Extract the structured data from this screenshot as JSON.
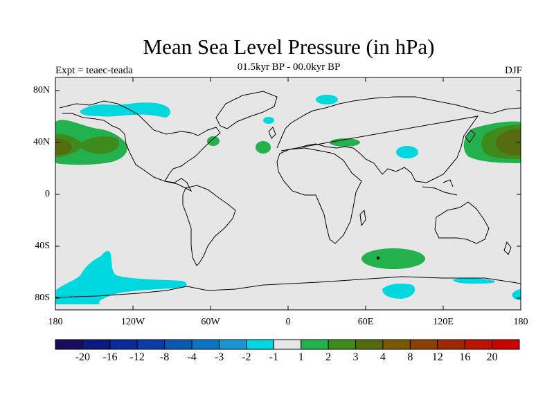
{
  "title": "Mean Sea Level Pressure (in hPa)",
  "subtitle": "01.5kyr BP - 00.0kyr BP",
  "left_label": "Expt = teaec-teada",
  "right_label": "DJF",
  "lat_labels": [
    "80N",
    "40N",
    "0",
    "40S",
    "80S"
  ],
  "lon_labels": [
    "180",
    "120W",
    "60W",
    "0",
    "60E",
    "120E",
    "180"
  ],
  "colorbar": {
    "colors": [
      "#1a0b5c",
      "#0c1b80",
      "#0b2a99",
      "#0d3ca6",
      "#0a58b0",
      "#0c72c2",
      "#1796d2",
      "#00d8e0",
      "#e6e6e6",
      "#22b14c",
      "#3f8a1c",
      "#556b10",
      "#7a5a00",
      "#8b4000",
      "#a02800",
      "#b81400",
      "#cc0000"
    ],
    "labels": [
      "-20",
      "-16",
      "-12",
      "-8",
      "-4",
      "-3",
      "-2",
      "-1",
      "1",
      "2",
      "3",
      "4",
      "8",
      "12",
      "16",
      "20"
    ]
  },
  "map_colors": {
    "background": "#e6e6e6",
    "negative_1": "#00d8e0",
    "positive_1": "#22b14c",
    "positive_2": "#3f8a1c",
    "positive_3": "#556b10"
  }
}
